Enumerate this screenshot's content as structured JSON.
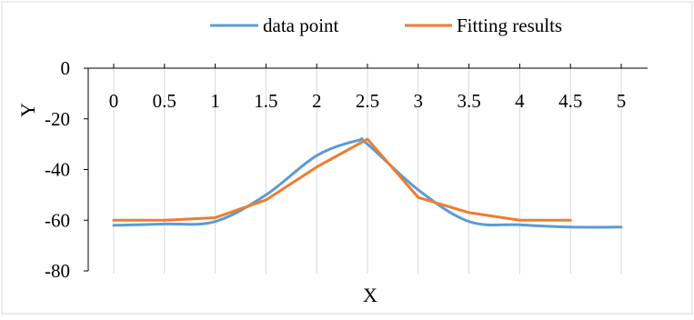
{
  "chart_data": {
    "type": "line",
    "title": "",
    "xlabel": "X",
    "ylabel": "Y",
    "x_categories": [
      "0",
      "0.5",
      "1",
      "1.5",
      "2",
      "2.5",
      "3",
      "3.5",
      "4",
      "4.5",
      "5"
    ],
    "ylim": [
      -80,
      0
    ],
    "yticks": [
      0,
      -20,
      -40,
      -60,
      -80
    ],
    "grid": "vertical",
    "legend_position": "top",
    "series": [
      {
        "name": "data point",
        "color": "#5b9bd5",
        "smooth": true,
        "x": [
          0,
          0.5,
          1,
          1.5,
          2,
          2.4,
          2.5,
          3,
          3.5,
          4,
          4.5,
          5
        ],
        "y": [
          -62,
          -61.5,
          -60.5,
          -50,
          -34.5,
          -28.6,
          -30,
          -48,
          -60.5,
          -61.8,
          -62.7,
          -62.7
        ]
      },
      {
        "name": "Fitting results",
        "color": "#ed7d31",
        "smooth": false,
        "x": [
          0,
          0.5,
          1,
          1.5,
          2,
          2.5,
          3,
          3.5,
          4,
          4.5
        ],
        "y": [
          -60,
          -60,
          -59,
          -52,
          -39,
          -28,
          -51,
          -57,
          -60,
          -60
        ]
      }
    ]
  }
}
